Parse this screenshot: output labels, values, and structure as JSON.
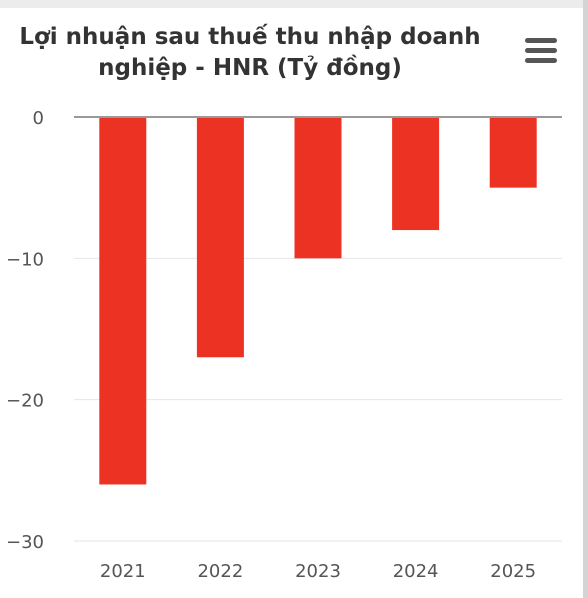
{
  "menu_icon": "hamburger-menu-icon",
  "colors": {
    "bar": "#ec3323",
    "grid": "#e6e6e6",
    "zero_line": "#999999",
    "axis_text": "#555555",
    "title": "#333333"
  },
  "chart_data": {
    "type": "bar",
    "title": "Lợi nhuận sau thuế thu nhập doanh nghiệp - HNR (Tỷ đồng)",
    "title_lines": [
      "Lợi nhuận sau thuế thu nhập doanh",
      "nghiệp - HNR (Tỷ đồng)"
    ],
    "categories": [
      "2021",
      "2022",
      "2023",
      "2024",
      "2025"
    ],
    "values": [
      -26,
      -17,
      -10,
      -8,
      -5
    ],
    "ylim": [
      -30,
      0
    ],
    "yticks": [
      0,
      -10,
      -20,
      -30
    ],
    "ytick_labels": [
      "0",
      "−10",
      "−20",
      "−30"
    ],
    "xlabel": "",
    "ylabel": "",
    "grid": true,
    "legend": "none"
  }
}
